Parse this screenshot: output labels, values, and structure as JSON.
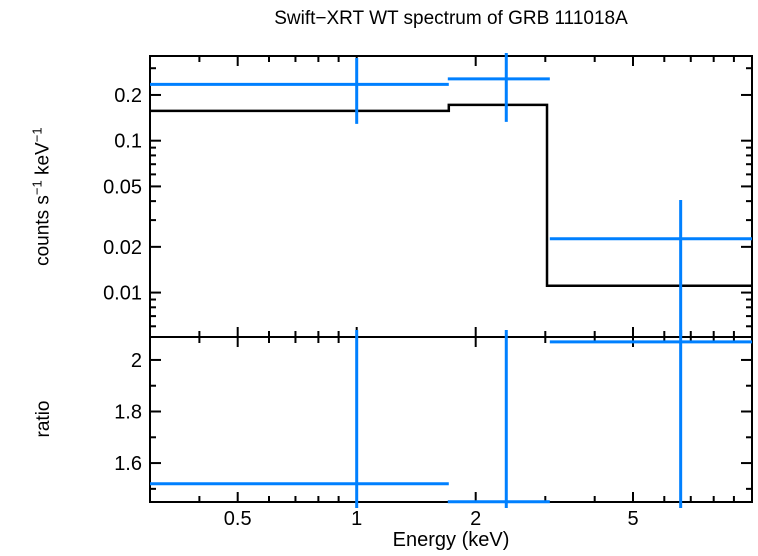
{
  "title": "Swift−XRT WT spectrum of GRB 111018A",
  "axes": {
    "x_label": "Energy (keV)",
    "y_label_top": {
      "t1": "counts s",
      "s1": "−1",
      "t2": " keV",
      "s2": "−1"
    },
    "y_label_bottom": "ratio"
  },
  "colors": {
    "data": "#0080ff",
    "model": "#000000",
    "frame": "#000000"
  },
  "chart_data": [
    {
      "panel": "spectrum",
      "type": "line",
      "subtype": "stepped-model-with-errorbar-data",
      "xscale": "log",
      "yscale": "log",
      "xlim": [
        0.3,
        10
      ],
      "ylim": [
        0.0051,
        0.361
      ],
      "x_ticks": [
        {
          "v": 0.5,
          "label": ""
        },
        {
          "v": 1,
          "label": ""
        },
        {
          "v": 2,
          "label": ""
        },
        {
          "v": 5,
          "label": ""
        }
      ],
      "x_minor": [
        0.4,
        0.6,
        0.7,
        0.8,
        0.9,
        3,
        4,
        6,
        7,
        8,
        9
      ],
      "y_ticks": [
        {
          "v": 0.2,
          "label": "0.2"
        },
        {
          "v": 0.1,
          "label": "0.1"
        },
        {
          "v": 0.05,
          "label": "0.05"
        },
        {
          "v": 0.02,
          "label": "0.02"
        },
        {
          "v": 0.01,
          "label": "0.01"
        }
      ],
      "y_minor": [
        0.3,
        0.09,
        0.08,
        0.07,
        0.06,
        0.04,
        0.03,
        0.009,
        0.008,
        0.007,
        0.006
      ],
      "points": [
        {
          "x": 1.0,
          "x_lo": 0.3,
          "x_hi": 1.71,
          "y": 0.235,
          "y_lo": 0.129,
          "y_hi": 0.35
        },
        {
          "x": 2.39,
          "x_lo": 1.7,
          "x_hi": 3.08,
          "y": 0.255,
          "y_lo": 0.133,
          "y_hi": 0.38
        },
        {
          "x": 6.6,
          "x_lo": 3.08,
          "x_hi": 10.0,
          "y": 0.0226,
          "y_lo": 0.004,
          "y_hi": 0.0407
        }
      ],
      "model_steps": [
        {
          "x_lo": 0.3,
          "x_hi": 1.71,
          "y": 0.157
        },
        {
          "x_lo": 1.71,
          "x_hi": 3.03,
          "y": 0.172
        },
        {
          "x_lo": 3.03,
          "x_hi": 10.0,
          "y": 0.0111
        }
      ]
    },
    {
      "panel": "ratio",
      "type": "scatter",
      "subtype": "errorbar-data",
      "xscale": "log",
      "yscale": "linear",
      "xlim": [
        0.3,
        10
      ],
      "ylim": [
        1.449,
        2.089
      ],
      "x_ticks": [
        {
          "v": 0.5,
          "label": "0.5"
        },
        {
          "v": 1,
          "label": "1"
        },
        {
          "v": 2,
          "label": "2"
        },
        {
          "v": 5,
          "label": "5"
        }
      ],
      "x_minor": [
        0.4,
        0.6,
        0.7,
        0.8,
        0.9,
        3,
        4,
        6,
        7,
        8,
        9
      ],
      "y_ticks": [
        {
          "v": 2,
          "label": "2"
        },
        {
          "v": 1.8,
          "label": "1.8"
        },
        {
          "v": 1.6,
          "label": "1.6"
        }
      ],
      "y_minor": [
        1.9,
        1.7,
        1.5
      ],
      "points": [
        {
          "x": 1.0,
          "x_lo": 0.3,
          "x_hi": 1.71,
          "y": 1.52,
          "y_lo": 1.3,
          "y_hi": 2.2
        },
        {
          "x": 2.39,
          "x_lo": 1.7,
          "x_hi": 3.08,
          "y": 1.45,
          "y_lo": 1.3,
          "y_hi": 2.2
        },
        {
          "x": 6.6,
          "x_lo": 3.08,
          "x_hi": 10.0,
          "y": 2.07,
          "y_lo": 1.3,
          "y_hi": 2.2
        }
      ]
    }
  ]
}
